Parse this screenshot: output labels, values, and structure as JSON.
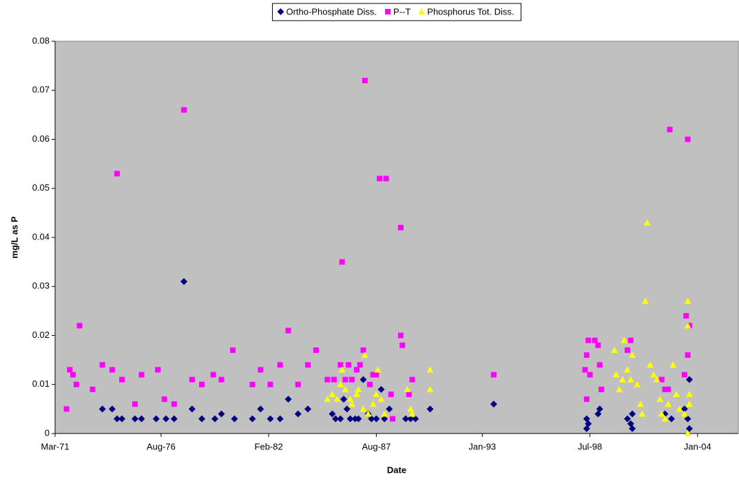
{
  "chart_data": {
    "type": "scatter",
    "xlabel": "Date",
    "ylabel": "mg/L as P",
    "xlim": [
      "1971-03",
      "2006-02"
    ],
    "xticks": [
      {
        "value": "1971-03",
        "label": "Mar-71"
      },
      {
        "value": "1976-08",
        "label": "Aug-76"
      },
      {
        "value": "1982-02",
        "label": "Feb-82"
      },
      {
        "value": "1987-08",
        "label": "Aug-87"
      },
      {
        "value": "1993-01",
        "label": "Jan-93"
      },
      {
        "value": "1998-07",
        "label": "Jul-98"
      },
      {
        "value": "2004-01",
        "label": "Jan-04"
      }
    ],
    "ylim": [
      0,
      0.08
    ],
    "yticks": [
      0,
      0.01,
      0.02,
      0.03,
      0.04,
      0.05,
      0.06,
      0.07,
      0.08
    ],
    "grid": false,
    "background": "#c0c0c0",
    "legend": "top",
    "series": [
      {
        "name": "Ortho-Phosphate Diss.",
        "color": "#000080",
        "marker": "diamond",
        "x": [
          "1973-08",
          "1974-02",
          "1974-05",
          "1974-08",
          "1975-04",
          "1975-08",
          "1976-05",
          "1976-11",
          "1977-04",
          "1977-10",
          "1978-03",
          "1978-09",
          "1979-05",
          "1979-09",
          "1980-05",
          "1981-04",
          "1981-09",
          "1982-03",
          "1982-09",
          "1983-02",
          "1983-08",
          "1984-02",
          "1985-05",
          "1985-07",
          "1985-10",
          "1985-12",
          "1986-02",
          "1986-04",
          "1986-07",
          "1986-09",
          "1986-12",
          "1987-03",
          "1987-05",
          "1987-08",
          "1987-11",
          "1988-01",
          "1988-04",
          "1989-02",
          "1989-05",
          "1989-08",
          "1990-05",
          "1993-08",
          "1998-05",
          "1998-05",
          "1998-06",
          "1998-12",
          "1999-01",
          "2000-06",
          "2000-08",
          "2000-09",
          "2000-09",
          "2002-05",
          "2002-09",
          "2003-05",
          "2003-07",
          "2003-08",
          "2003-08"
        ],
        "values": [
          0.005,
          0.005,
          0.003,
          0.003,
          0.003,
          0.003,
          0.003,
          0.003,
          0.003,
          0.031,
          0.005,
          0.003,
          0.003,
          0.004,
          0.003,
          0.003,
          0.005,
          0.003,
          0.003,
          0.007,
          0.004,
          0.005,
          0.004,
          0.003,
          0.003,
          0.007,
          0.005,
          0.003,
          0.003,
          0.003,
          0.011,
          0.004,
          0.003,
          0.003,
          0.009,
          0.003,
          0.005,
          0.003,
          0.003,
          0.003,
          0.005,
          0.006,
          0.001,
          0.003,
          0.002,
          0.004,
          0.005,
          0.003,
          0.002,
          0.001,
          0.004,
          0.004,
          0.003,
          0.005,
          0.003,
          0.011,
          0.001
        ]
      },
      {
        "name": "P--T",
        "color": "#ff00ff",
        "marker": "square",
        "x": [
          "1971-10",
          "1971-12",
          "1972-02",
          "1972-04",
          "1972-06",
          "1973-02",
          "1973-08",
          "1974-02",
          "1974-05",
          "1974-08",
          "1975-04",
          "1975-08",
          "1976-06",
          "1976-10",
          "1977-04",
          "1977-10",
          "1978-03",
          "1978-09",
          "1979-04",
          "1979-09",
          "1980-04",
          "1981-04",
          "1981-09",
          "1982-03",
          "1982-09",
          "1983-02",
          "1983-08",
          "1984-02",
          "1984-07",
          "1985-02",
          "1985-06",
          "1985-10",
          "1985-11",
          "1986-01",
          "1986-03",
          "1986-05",
          "1986-08",
          "1986-10",
          "1986-12",
          "1987-01",
          "1987-04",
          "1987-06",
          "1987-08",
          "1987-10",
          "1988-02",
          "1988-05",
          "1988-06",
          "1988-11",
          "1988-11",
          "1988-12",
          "1989-04",
          "1989-06",
          "1993-08",
          "1998-04",
          "1998-05",
          "1998-05",
          "1998-06",
          "1998-07",
          "1998-10",
          "1998-12",
          "1999-01",
          "1999-02",
          "2000-06",
          "2000-08",
          "2002-03",
          "2002-05",
          "2002-08",
          "2002-07",
          "2003-05",
          "2003-06",
          "2003-07",
          "2003-07",
          "2003-08"
        ],
        "values": [
          0.005,
          0.013,
          0.012,
          0.01,
          0.022,
          0.009,
          0.014,
          0.013,
          0.053,
          0.011,
          0.006,
          0.012,
          0.013,
          0.007,
          0.006,
          0.066,
          0.011,
          0.01,
          0.012,
          0.011,
          0.017,
          0.01,
          0.013,
          0.01,
          0.014,
          0.021,
          0.01,
          0.014,
          0.017,
          0.011,
          0.011,
          0.014,
          0.035,
          0.011,
          0.014,
          0.011,
          0.013,
          0.014,
          0.017,
          0.072,
          0.01,
          0.012,
          0.012,
          0.052,
          0.052,
          0.008,
          0.003,
          0.042,
          0.02,
          0.018,
          0.008,
          0.011,
          0.012,
          0.013,
          0.016,
          0.007,
          0.019,
          0.012,
          0.019,
          0.018,
          0.014,
          0.009,
          0.017,
          0.019,
          0.011,
          0.009,
          0.062,
          0.009,
          0.012,
          0.024,
          0.06,
          0.016,
          0.022
        ]
      },
      {
        "name": "Phosphorus Tot. Diss.",
        "color": "#ffff00",
        "marker": "triangle",
        "x": [
          "1985-02",
          "1985-05",
          "1985-08",
          "1985-10",
          "1985-11",
          "1986-01",
          "1986-04",
          "1986-05",
          "1986-08",
          "1986-09",
          "1986-12",
          "1987-01",
          "1987-03",
          "1987-06",
          "1987-08",
          "1987-09",
          "1987-11",
          "1988-01",
          "1989-03",
          "1989-05",
          "1989-06",
          "1990-05",
          "1990-05",
          "1999-10",
          "1999-11",
          "2000-01",
          "2000-03",
          "2000-04",
          "2000-06",
          "2000-08",
          "2000-09",
          "2000-12",
          "2001-02",
          "2001-03",
          "2001-06",
          "2001-05",
          "2001-08",
          "2001-10",
          "2001-12",
          "2002-02",
          "2002-03",
          "2002-05",
          "2002-07",
          "2002-10",
          "2002-12",
          "2003-02",
          "2003-05",
          "2003-07",
          "2003-07",
          "2003-08",
          "2003-07",
          "2003-08"
        ],
        "values": [
          0.007,
          0.008,
          0.007,
          0.01,
          0.013,
          0.009,
          0.007,
          0.006,
          0.008,
          0.009,
          0.005,
          0.016,
          0.004,
          0.006,
          0.008,
          0.013,
          0.007,
          0.004,
          0.009,
          0.005,
          0.004,
          0.013,
          0.009,
          0.017,
          0.012,
          0.009,
          0.011,
          0.019,
          0.013,
          0.011,
          0.016,
          0.01,
          0.006,
          0.004,
          0.043,
          0.027,
          0.014,
          0.012,
          0.011,
          0.007,
          0.004,
          0.003,
          0.006,
          0.014,
          0.008,
          0.005,
          0.004,
          0.027,
          0.022,
          0.008,
          0,
          0.006
        ]
      }
    ]
  }
}
